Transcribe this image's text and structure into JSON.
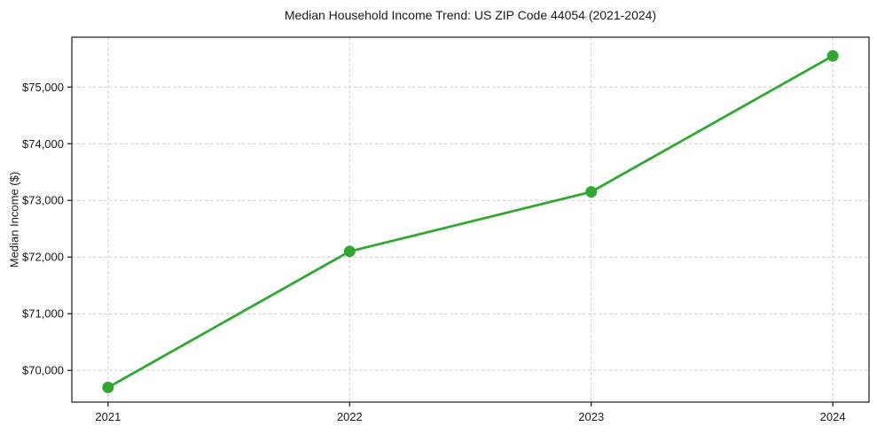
{
  "chart_data": {
    "type": "line",
    "title": "Median Household Income Trend: US ZIP Code 44054 (2021-2024)",
    "xlabel": "",
    "ylabel": "Median Income ($)",
    "x": [
      2021,
      2022,
      2023,
      2024
    ],
    "values": [
      69700,
      72100,
      73150,
      75550
    ],
    "x_tick_labels": [
      "2021",
      "2022",
      "2023",
      "2024"
    ],
    "y_ticks": [
      70000,
      71000,
      72000,
      73000,
      74000,
      75000
    ],
    "y_tick_labels": [
      "$70,000",
      "$71,000",
      "$72,000",
      "$73,000",
      "$74,000",
      "$75,000"
    ],
    "xlim": [
      2020.85,
      2024.15
    ],
    "ylim": [
      69440,
      75880
    ],
    "grid": true,
    "grid_style": "dashed",
    "legend": false,
    "colors": {
      "line": "#31a831",
      "marker": "#31a831",
      "grid": "#cccccc",
      "axis": "#1a1a1a",
      "text": "#1a1a1a",
      "background": "#ffffff"
    }
  }
}
